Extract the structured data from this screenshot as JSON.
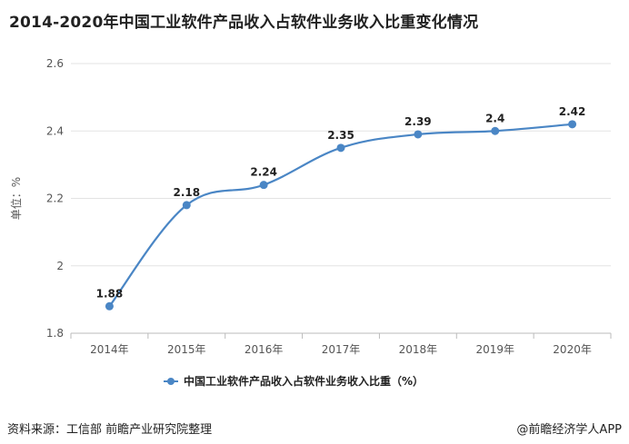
{
  "chart_data": {
    "type": "line",
    "title": "2014-2020年中国工业软件产品收入占软件业务收入比重变化情况",
    "ylabel": "单位：%",
    "xlabel": "",
    "categories": [
      "2014年",
      "2015年",
      "2016年",
      "2017年",
      "2018年",
      "2019年",
      "2020年"
    ],
    "series": [
      {
        "name": "中国工业软件产品收入占软件业务收入比重（%）",
        "values": [
          1.88,
          2.18,
          2.24,
          2.35,
          2.39,
          2.4,
          2.42
        ],
        "labels": [
          "1.88",
          "2.18",
          "2.24",
          "2.35",
          "2.39",
          "2.4",
          "2.42"
        ]
      }
    ],
    "ylim": [
      1.8,
      2.6
    ],
    "yticks": [
      1.8,
      2,
      2.2,
      2.4,
      2.6
    ],
    "ytick_labels": [
      "1.8",
      "2",
      "2.2",
      "2.4",
      "2.6"
    ],
    "grid": true,
    "legend_position": "bottom",
    "line_color": "#4a86c5"
  },
  "footer": {
    "source": "资料来源：工信部 前瞻产业研究院整理",
    "brand": "@前瞻经济学人APP"
  }
}
